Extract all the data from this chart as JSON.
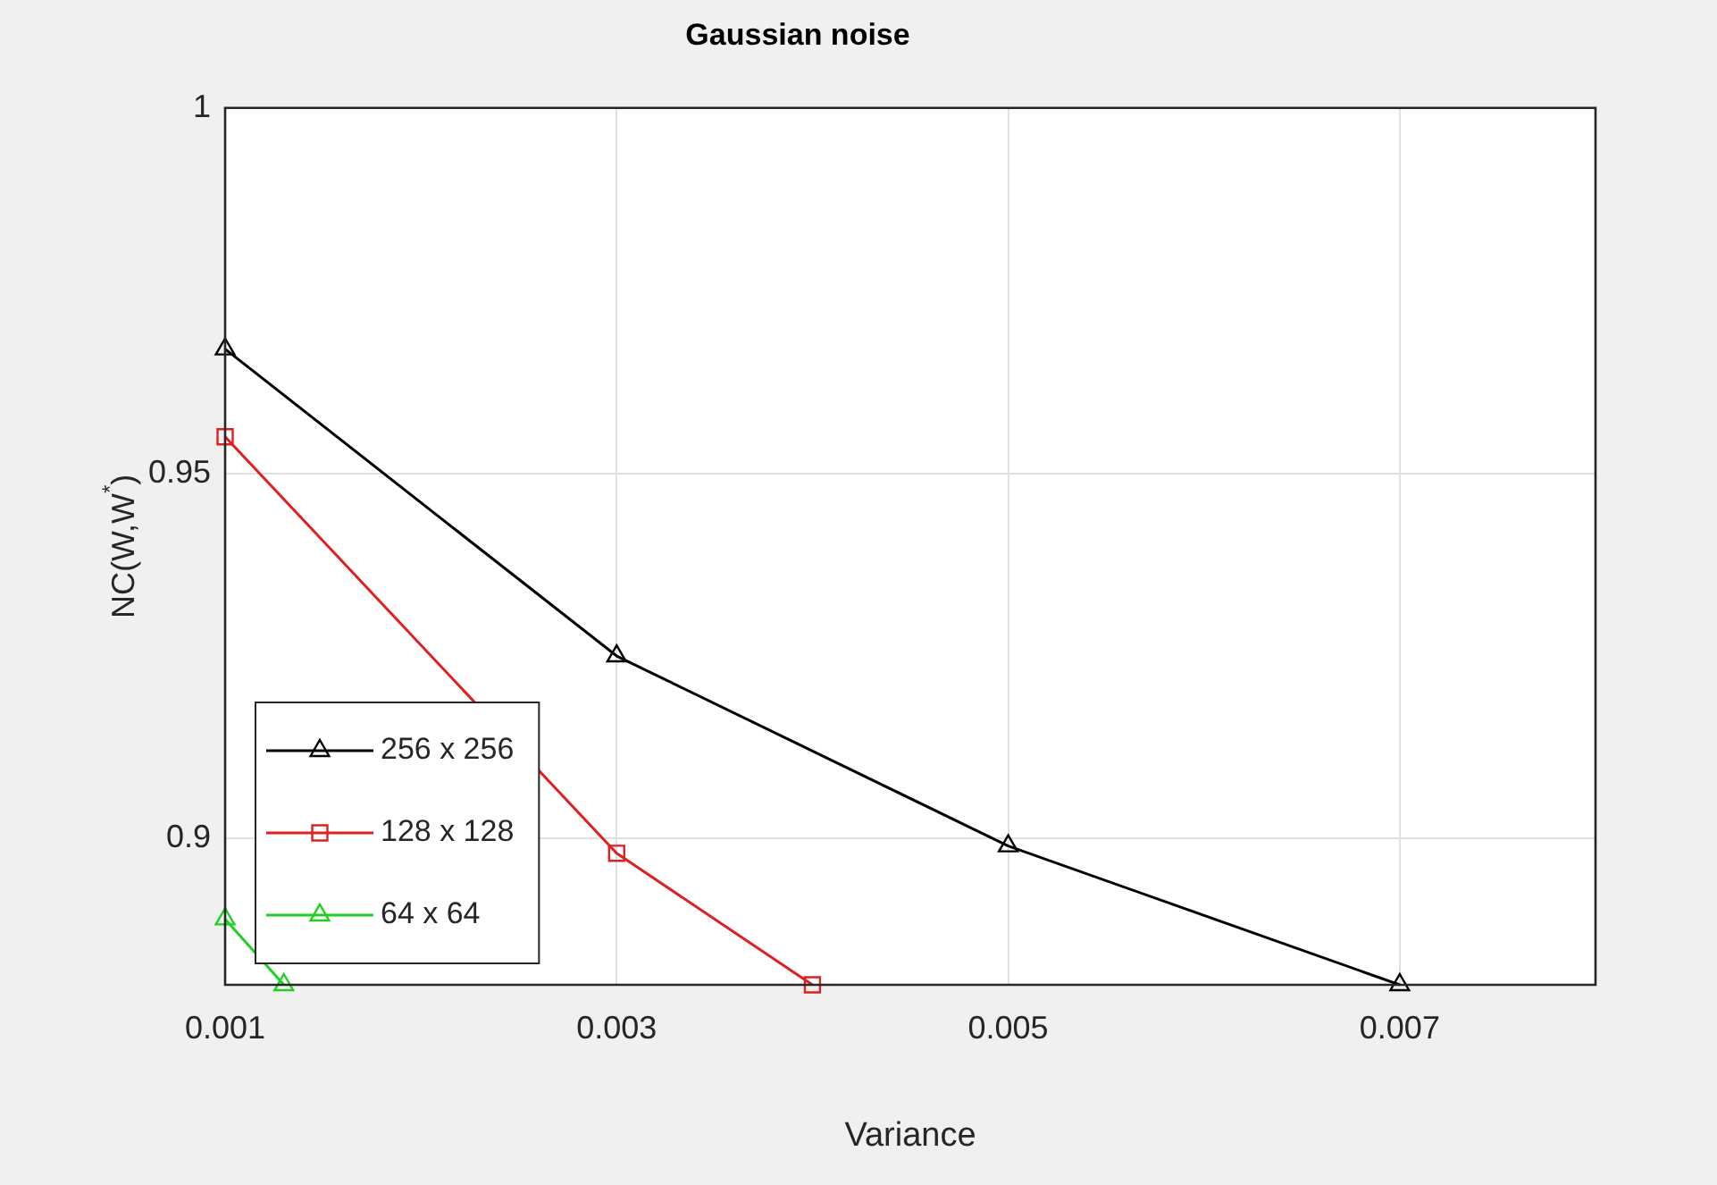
{
  "chart_data": {
    "type": "line",
    "title": "Gaussian noise",
    "xlabel": "Variance",
    "ylabel": "NC(W,W$^{*}$)",
    "xlim": [
      0.001,
      0.008
    ],
    "xticks": [
      0.001,
      0.003,
      0.005,
      0.007
    ],
    "ylim": [
      0.88,
      1
    ],
    "yticks": [
      0.9,
      0.95,
      1
    ],
    "series": [
      {
        "name": "256 x 256",
        "color": "#000000",
        "marker": "triangle",
        "x": [
          0.001,
          0.003,
          0.005,
          0.007
        ],
        "values": [
          0.967,
          0.925,
          0.899,
          0.88
        ]
      },
      {
        "name": "128 x 128",
        "color": "#e02020",
        "marker": "square",
        "x": [
          0.001,
          0.003,
          0.004
        ],
        "values": [
          0.955,
          0.898,
          0.88
        ]
      },
      {
        "name": "64 x 64",
        "color": "#20d020",
        "marker": "triangle",
        "x": [
          0.001,
          0.0013
        ],
        "values": [
          0.889,
          0.88
        ]
      }
    ],
    "grid": true,
    "legend": "bottom left",
    "line_style": "solid"
  }
}
